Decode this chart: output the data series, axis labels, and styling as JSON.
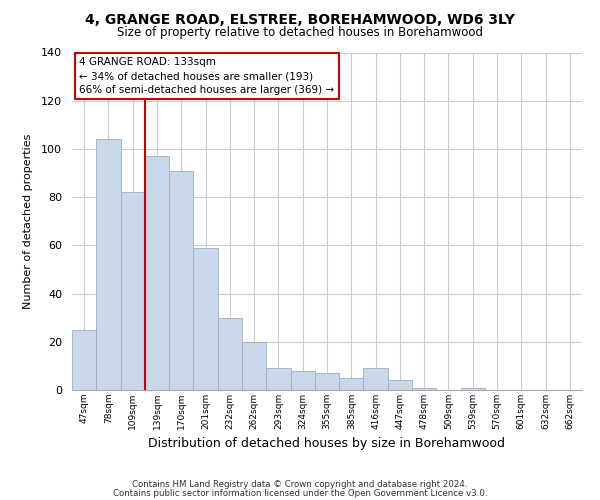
{
  "title": "4, GRANGE ROAD, ELSTREE, BOREHAMWOOD, WD6 3LY",
  "subtitle": "Size of property relative to detached houses in Borehamwood",
  "xlabel": "Distribution of detached houses by size in Borehamwood",
  "ylabel": "Number of detached properties",
  "bar_labels": [
    "47sqm",
    "78sqm",
    "109sqm",
    "139sqm",
    "170sqm",
    "201sqm",
    "232sqm",
    "262sqm",
    "293sqm",
    "324sqm",
    "355sqm",
    "385sqm",
    "416sqm",
    "447sqm",
    "478sqm",
    "509sqm",
    "539sqm",
    "570sqm",
    "601sqm",
    "632sqm",
    "662sqm"
  ],
  "bar_values": [
    25,
    104,
    82,
    97,
    91,
    59,
    30,
    20,
    9,
    8,
    7,
    5,
    9,
    4,
    1,
    0,
    1,
    0,
    0,
    0,
    0
  ],
  "bar_color": "#c8d8e8",
  "bar_edge_color": "#9ab0c8",
  "vline_x": 3,
  "vline_color": "#cc0000",
  "annotation_title": "4 GRANGE ROAD: 133sqm",
  "annotation_line1": "← 34% of detached houses are smaller (193)",
  "annotation_line2": "66% of semi-detached houses are larger (369) →",
  "annotation_box_color": "#ffffff",
  "annotation_box_edge": "#cc0000",
  "ylim": [
    0,
    140
  ],
  "yticks": [
    0,
    20,
    40,
    60,
    80,
    100,
    120,
    140
  ],
  "footer1": "Contains HM Land Registry data © Crown copyright and database right 2024.",
  "footer2": "Contains public sector information licensed under the Open Government Licence v3.0.",
  "bg_color": "#ffffff"
}
